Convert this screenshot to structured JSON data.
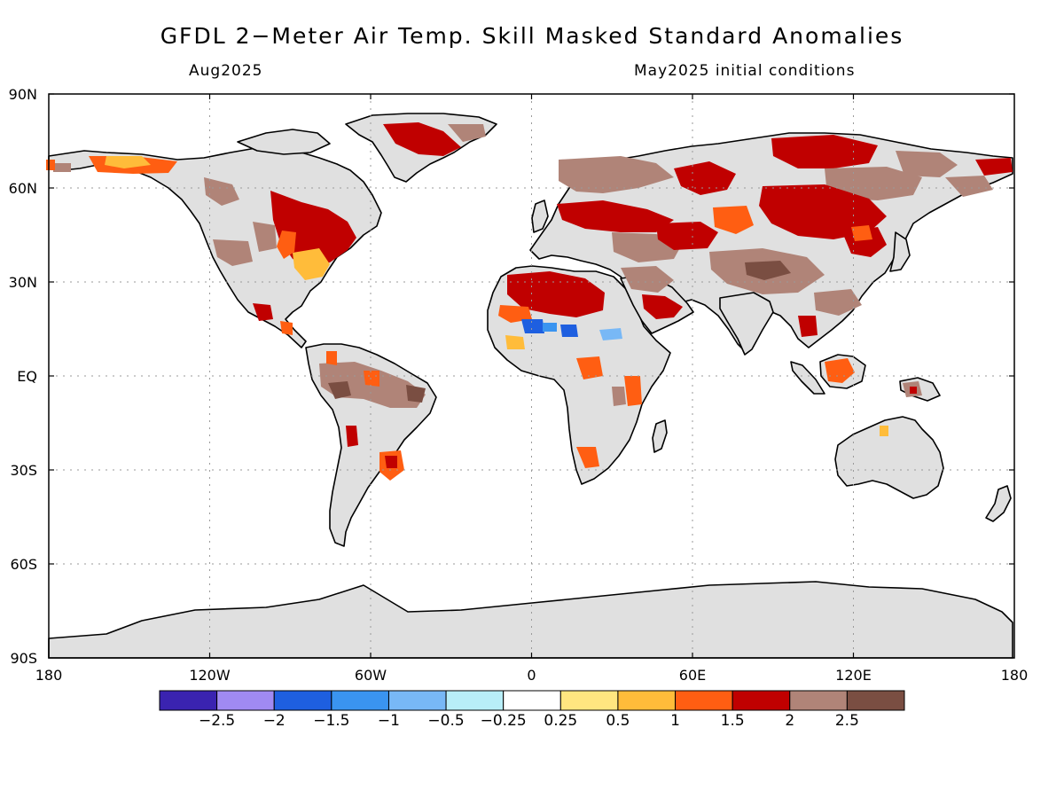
{
  "map": {
    "title": "GFDL 2−Meter Air Temp. Skill Masked Standard Anomalies",
    "valid_month": "Aug2025",
    "init_label": "May2025 initial conditions",
    "lat_labels": [
      "90N",
      "60N",
      "30N",
      "EQ",
      "30S",
      "60S",
      "90S"
    ],
    "lon_labels": [
      "180",
      "120W",
      "60W",
      "0",
      "60E",
      "120E",
      "180"
    ],
    "colors": {
      "land_masked": "#e0e0e0",
      "coastline": "#000000",
      "grid": "#9a9a9a"
    }
  },
  "colorbar": {
    "colors": [
      "#3a23b0",
      "#a08af2",
      "#1e5fe0",
      "#3a94f0",
      "#78b8f6",
      "#b8eef8",
      "#ffffff",
      "#ffe680",
      "#ffbc3a",
      "#ff5e12",
      "#c00000",
      "#b08478",
      "#7a4e42"
    ],
    "labels": [
      "−2.5",
      "−2",
      "−1.5",
      "−1",
      "−0.5",
      "−0.25",
      "0.25",
      "0.5",
      "1",
      "1.5",
      "2",
      "2.5"
    ]
  }
}
